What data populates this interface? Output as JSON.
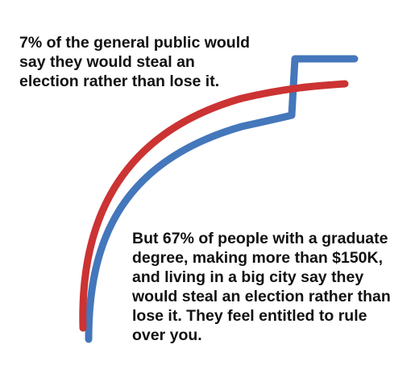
{
  "captions": {
    "top": "7% of the general public would\nsay they would steal an\nelection rather than lose it.",
    "bottom": "But 67% of people with a graduate\ndegree, making more than $150K,\nand living in a big city say they\nwould steal an election rather than\nlose it. They feel entitled to rule\nover you."
  },
  "colors": {
    "red_line": "#cc3333",
    "blue_line": "#4477bb",
    "text": "#111111",
    "background": "#ffffff"
  }
}
